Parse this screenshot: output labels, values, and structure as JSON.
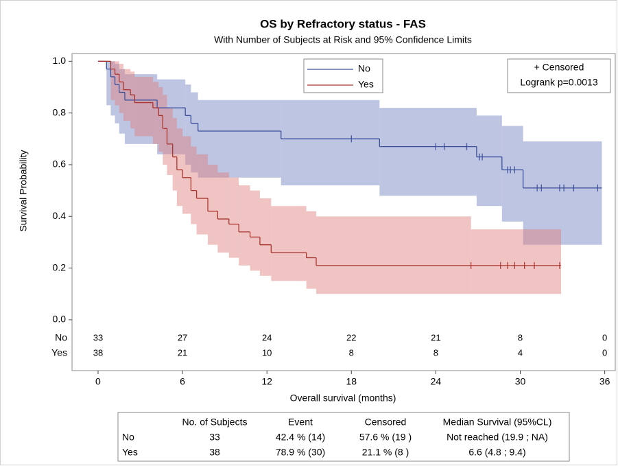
{
  "chart_data": {
    "type": "km",
    "title": "OS by Refractory status - FAS",
    "subtitle": "With Number of Subjects at Risk and 95% Confidence Limits",
    "xlabel": "Overall survival (months)",
    "ylabel": "Survival Probability",
    "xlim": [
      -1.85,
      36.75
    ],
    "ylim": [
      -0.04,
      1.03
    ],
    "xticks": [
      0,
      6,
      12,
      18,
      24,
      30,
      36
    ],
    "yticks": [
      {
        "value": 0,
        "label": "0.0"
      },
      0.2,
      0.4,
      0.6,
      0.8,
      {
        "value": 1,
        "label": "1.0"
      }
    ],
    "legend_position": "top",
    "inset": [
      "+ Censored",
      "Logrank p=0.0013"
    ],
    "at_risk_x": [
      0,
      6,
      12,
      18,
      24,
      30,
      36
    ],
    "series": [
      {
        "name": "No",
        "color": "#3a4f9a",
        "band_color": "#6f7fbf",
        "x": [
          0,
          0.6,
          0.9,
          1.2,
          1.5,
          1.9,
          4.2,
          6.2,
          6.6,
          7.1,
          13.0,
          20.0,
          26.9,
          28.7,
          30.2
        ],
        "values": [
          1.0,
          0.97,
          0.94,
          0.91,
          0.88,
          0.85,
          0.82,
          0.79,
          0.76,
          0.73,
          0.7,
          0.67,
          0.63,
          0.58,
          0.51
        ],
        "upper": [
          1.0,
          1.0,
          1.0,
          0.99,
          0.97,
          0.95,
          0.93,
          0.91,
          0.88,
          0.85,
          0.85,
          0.82,
          0.79,
          0.75,
          0.69
        ],
        "lower": [
          1.0,
          0.83,
          0.79,
          0.76,
          0.72,
          0.68,
          0.64,
          0.6,
          0.57,
          0.55,
          0.52,
          0.48,
          0.44,
          0.38,
          0.29
        ],
        "end": 35.8,
        "censor_x": [
          18.0,
          24.0,
          24.6,
          26.2,
          27.1,
          27.3,
          29.1,
          29.3,
          29.6,
          31.2,
          31.5,
          32.8,
          33.1,
          33.8,
          35.5
        ],
        "censor_values": [
          0.7,
          0.67,
          0.67,
          0.67,
          0.63,
          0.63,
          0.58,
          0.58,
          0.58,
          0.51,
          0.51,
          0.51,
          0.51,
          0.51,
          0.51
        ],
        "at_risk": [
          33,
          27,
          24,
          22,
          21,
          8,
          0
        ]
      },
      {
        "name": "Yes",
        "color": "#a8342e",
        "band_color": "#e07c7c",
        "x": [
          0,
          0.9,
          1.2,
          1.5,
          1.8,
          2.3,
          2.6,
          3.9,
          4.3,
          4.6,
          4.9,
          5.3,
          5.6,
          6.0,
          6.6,
          7.0,
          7.8,
          8.5,
          9.3,
          10.0,
          10.8,
          11.5,
          12.3,
          14.8,
          15.5,
          26.5
        ],
        "values": [
          1.0,
          0.97,
          0.95,
          0.92,
          0.89,
          0.87,
          0.84,
          0.82,
          0.79,
          0.74,
          0.68,
          0.63,
          0.58,
          0.55,
          0.5,
          0.47,
          0.42,
          0.39,
          0.37,
          0.34,
          0.32,
          0.29,
          0.26,
          0.24,
          0.21,
          0.21
        ],
        "upper": [
          1.0,
          1.0,
          1.0,
          0.99,
          0.97,
          0.96,
          0.94,
          0.92,
          0.9,
          0.87,
          0.82,
          0.78,
          0.74,
          0.71,
          0.67,
          0.64,
          0.6,
          0.57,
          0.55,
          0.52,
          0.5,
          0.47,
          0.44,
          0.42,
          0.4,
          0.35
        ],
        "lower": [
          1.0,
          0.85,
          0.83,
          0.8,
          0.77,
          0.74,
          0.71,
          0.68,
          0.65,
          0.6,
          0.56,
          0.5,
          0.44,
          0.41,
          0.37,
          0.33,
          0.29,
          0.26,
          0.24,
          0.21,
          0.19,
          0.17,
          0.15,
          0.12,
          0.1,
          0.1
        ],
        "end": 32.9,
        "censor_x": [
          26.5,
          28.6,
          29.1,
          29.6,
          30.3,
          31.0,
          32.8
        ],
        "censor_values": [
          0.21,
          0.21,
          0.21,
          0.21,
          0.21,
          0.21,
          0.21
        ],
        "at_risk": [
          38,
          21,
          10,
          8,
          8,
          4,
          0
        ]
      }
    ]
  },
  "summary_table": {
    "columns": [
      "No. of Subjects",
      "Event",
      "Censored",
      "Median Survival (95%CL)"
    ],
    "rows": [
      [
        "No",
        "33",
        "42.4 % (14)",
        "57.6 % (19 )",
        "Not reached (19.9 ; NA)"
      ],
      [
        "Yes",
        "38",
        "78.9 % (30)",
        "21.1 % (8 )",
        "6.6 (4.8 ; 9.4)"
      ]
    ]
  }
}
